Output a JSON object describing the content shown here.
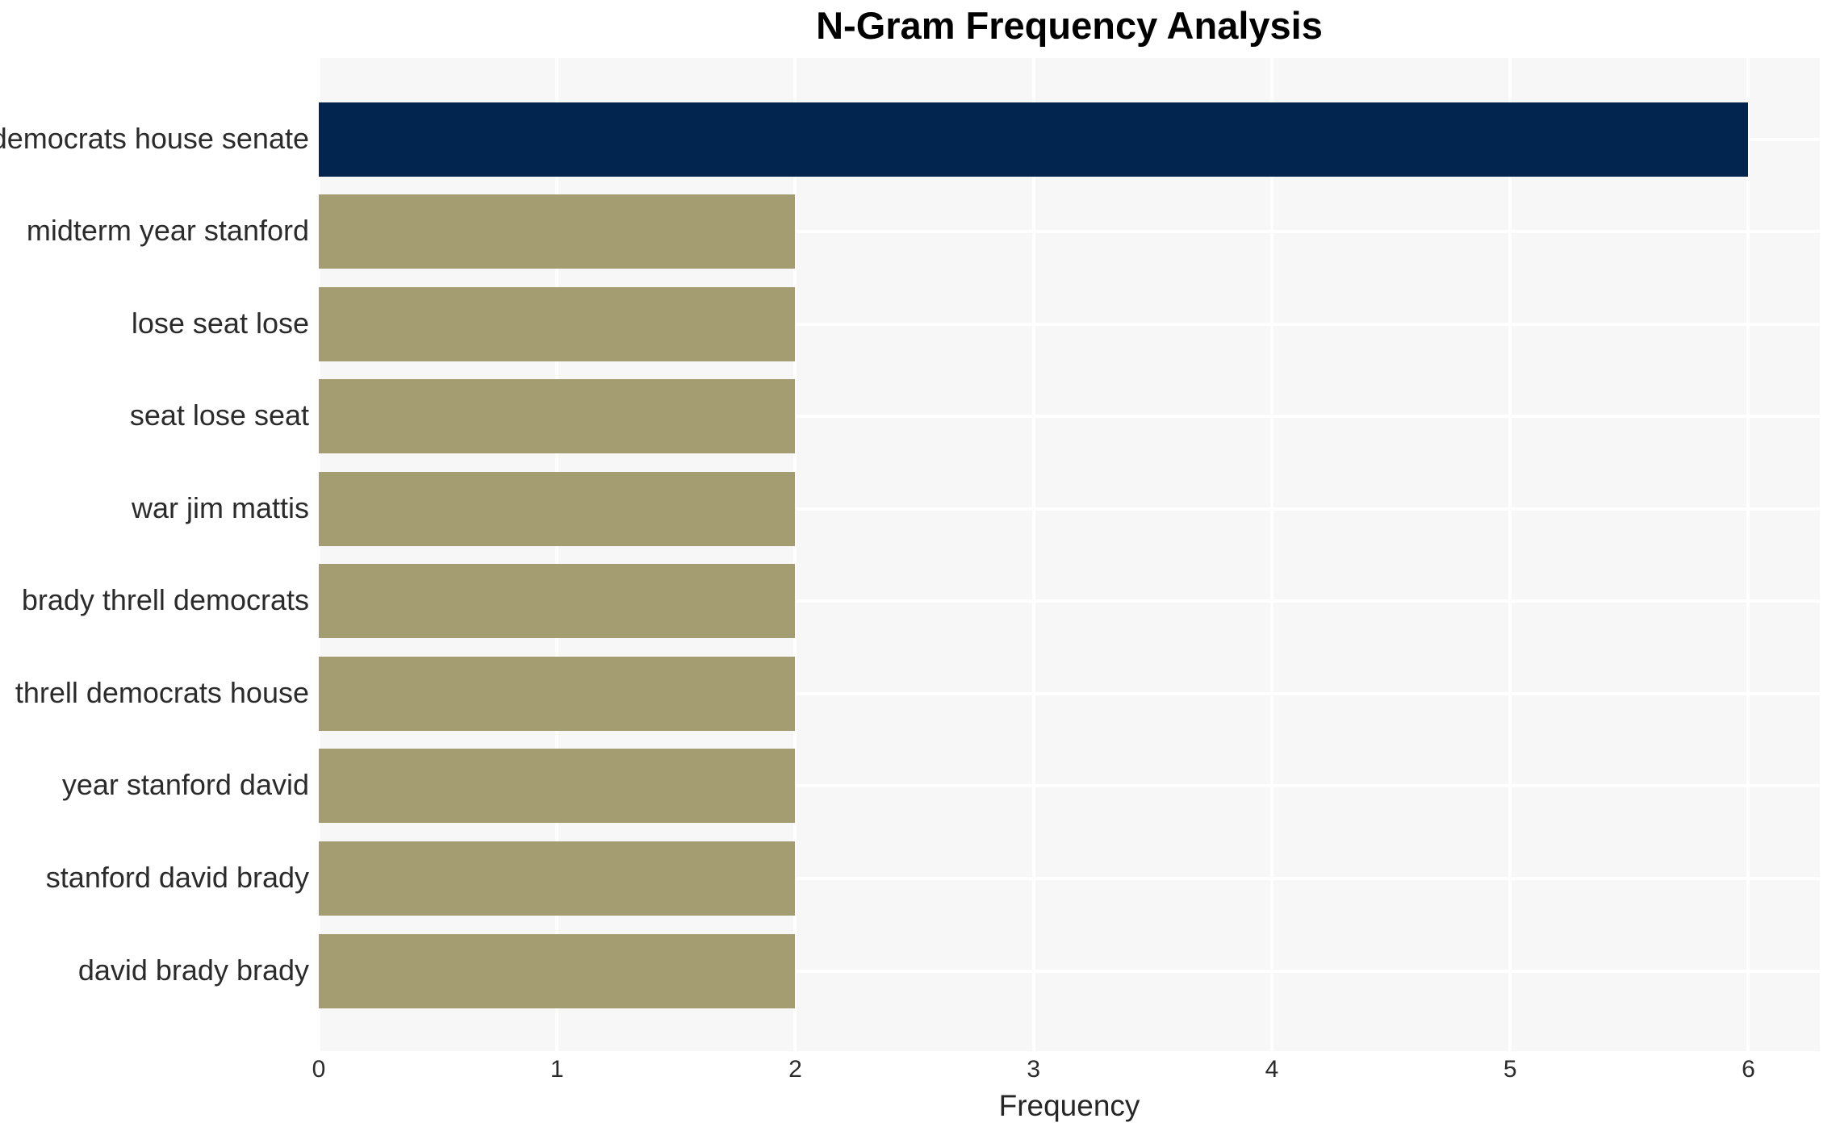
{
  "chart_data": {
    "type": "bar",
    "orientation": "horizontal",
    "title": "N-Gram Frequency Analysis",
    "xlabel": "Frequency",
    "ylabel": "",
    "categories": [
      "democrats house senate",
      "midterm year stanford",
      "lose seat lose",
      "seat lose seat",
      "war jim mattis",
      "brady threll democrats",
      "threll democrats house",
      "year stanford david",
      "stanford david brady",
      "david brady brady"
    ],
    "values": [
      6,
      2,
      2,
      2,
      2,
      2,
      2,
      2,
      2,
      2
    ],
    "bar_colors": [
      "#01254e",
      "#a49d71",
      "#a49d71",
      "#a49d71",
      "#a49d71",
      "#a49d71",
      "#a49d71",
      "#a49d71",
      "#a49d71",
      "#a49d71"
    ],
    "xticks": [
      0,
      1,
      2,
      3,
      4,
      5,
      6
    ],
    "xlim": [
      0,
      6.3
    ],
    "grid": true,
    "legend": false,
    "colors": {
      "plot_background": "#f7f7f7",
      "figure_background": "#ffffff",
      "gridline": "#ffffff",
      "highlight_bar": "#01254e",
      "default_bar": "#a49d71",
      "tick_text": "#2b2b2b",
      "title_text": "#000000"
    }
  }
}
